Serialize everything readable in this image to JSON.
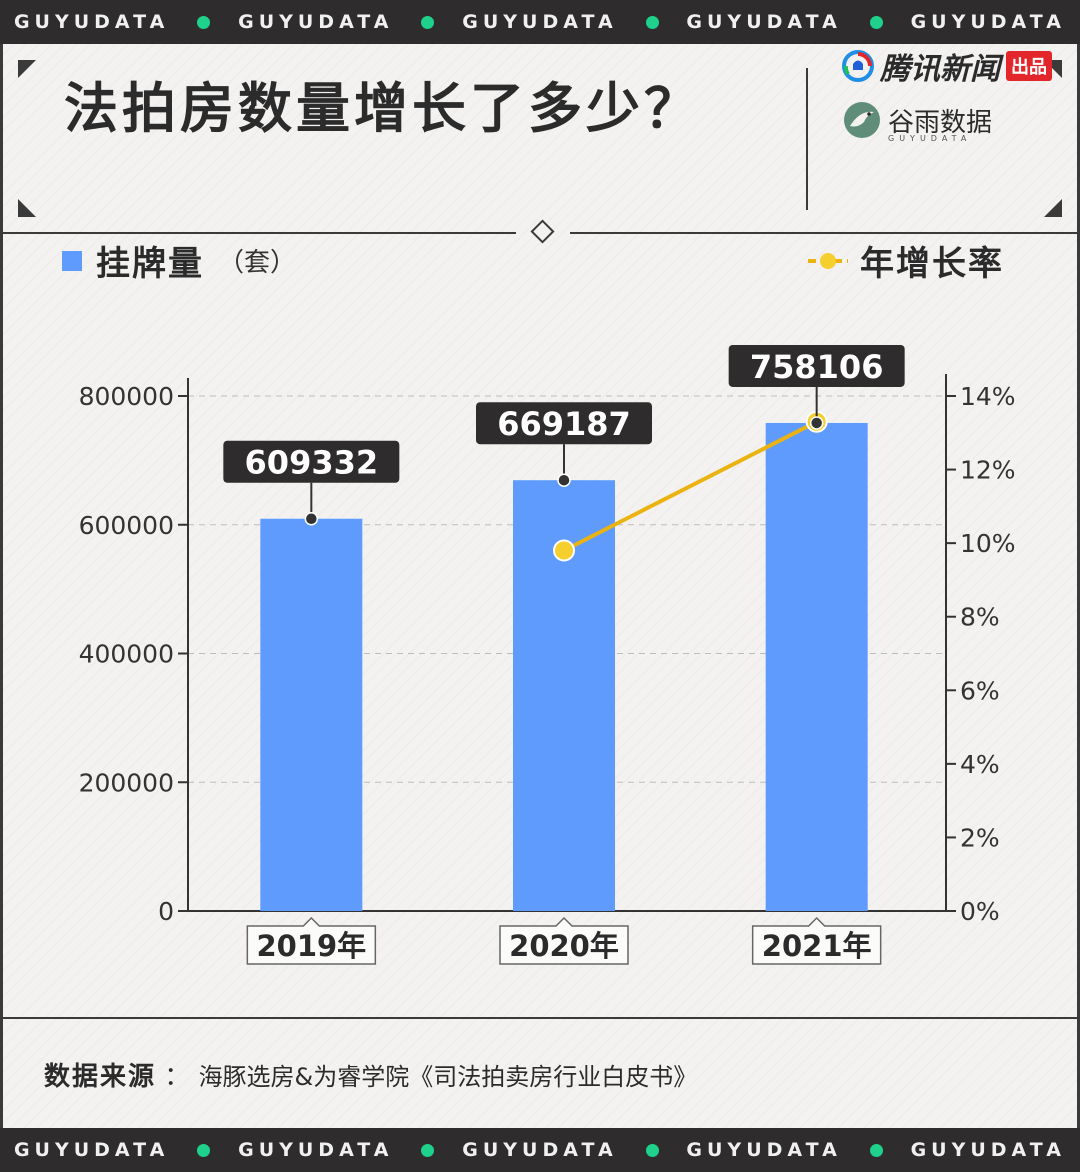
{
  "band_text": "GUYUDATA",
  "title": "法拍房数量增长了多少？",
  "brands": {
    "tencent": "腾讯新闻",
    "tencent_badge": "出品",
    "guyu": "谷雨数据",
    "guyu_sub": "GUYUDATA"
  },
  "legend": {
    "bar_label": "挂牌量",
    "bar_unit": "（套）",
    "line_label": "年增长率"
  },
  "colors": {
    "bar": "#5e9bfd",
    "line": "#eab312",
    "dot": "#f5cf2e",
    "band_dot": "#1fd18c",
    "dark": "#2e2c2d"
  },
  "chart_data": {
    "type": "bar",
    "categories": [
      "2019年",
      "2020年",
      "2021年"
    ],
    "series": [
      {
        "name": "挂牌量",
        "type": "bar",
        "axis": "left",
        "values": [
          609332,
          669187,
          758106
        ]
      },
      {
        "name": "年增长率",
        "type": "line",
        "axis": "right",
        "values": [
          null,
          9.8,
          13.3
        ]
      }
    ],
    "data_labels": [
      "609332",
      "669187",
      "758106"
    ],
    "y_left": {
      "min": 0,
      "max": 800000,
      "ticks": [
        "0",
        "200000",
        "400000",
        "600000",
        "800000"
      ]
    },
    "y_right": {
      "min": 0,
      "max": 14,
      "ticks": [
        "0%",
        "2%",
        "4%",
        "6%",
        "8%",
        "10%",
        "12%",
        "14%"
      ]
    },
    "grid": true
  },
  "source": {
    "label": "数据来源",
    "sep": "：",
    "text": "海豚选房&为睿学院《司法拍卖房行业白皮书》"
  }
}
